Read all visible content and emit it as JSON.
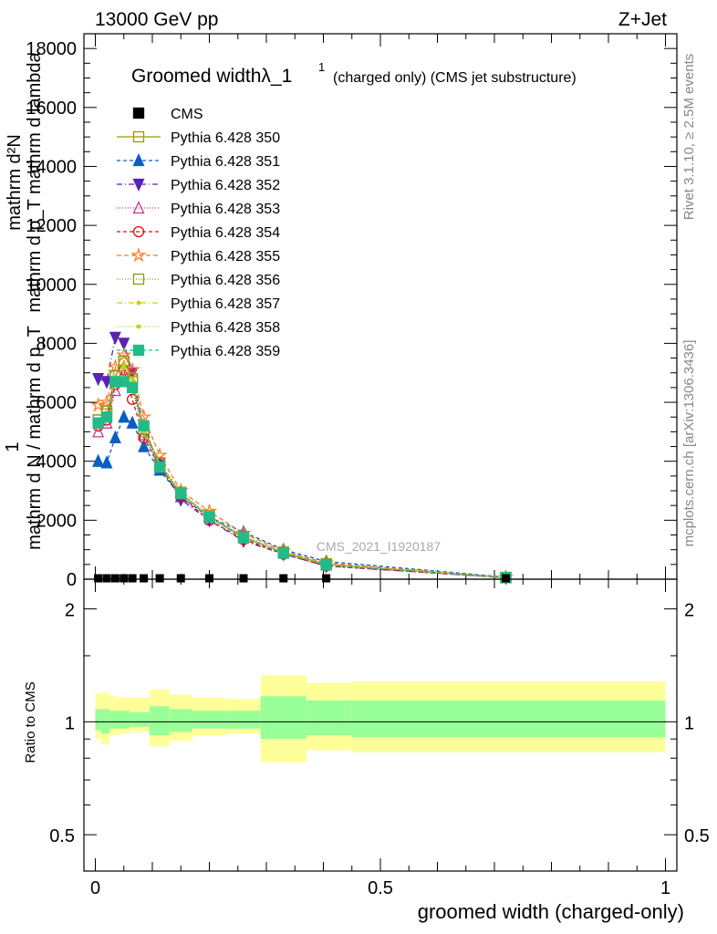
{
  "header": {
    "left": "13000 GeV pp",
    "right": "Z+Jet"
  },
  "side_labels": {
    "rivet": "Rivet 3.1.10, ≥ 2.5M events",
    "mcplots": "mcplots.cern.ch [arXiv:1306.3436]"
  },
  "watermark": "CMS_2021_I1920187",
  "chart_data": {
    "type": "line",
    "title_main": "Groomed widthλ_1",
    "title_sup": "1",
    "title_small": "(charged only) (CMS jet substructure)",
    "ylabel_lines": [
      "mathrm d²N",
      "mathrm d p_T mathrm d lambda",
      "1",
      "mathrm d N / mathrm d p_T"
    ],
    "xlabel": "groomed width (charged-only)",
    "ratio_ylabel": "Ratio to CMS",
    "xlim": [
      -0.02,
      1.02
    ],
    "ylim": [
      0,
      18500
    ],
    "ratio_ylim": [
      0.4,
      2.4
    ],
    "x_ticks": [
      0,
      0.5,
      1
    ],
    "x_tick_labels": [
      "0",
      "0.5",
      "1"
    ],
    "y_ticks": [
      0,
      2000,
      4000,
      6000,
      8000,
      10000,
      12000,
      14000,
      16000,
      18000
    ],
    "y_tick_labels": [
      "0",
      "2000",
      "4000",
      "6000",
      "8000",
      "10000",
      "12000",
      "14000",
      "16000",
      "18000"
    ],
    "ratio_ticks": [
      0.5,
      1,
      2
    ],
    "ratio_tick_labels": [
      "0.5",
      "1",
      "2"
    ],
    "x": [
      0.005,
      0.02,
      0.035,
      0.05,
      0.065,
      0.085,
      0.113,
      0.15,
      0.2,
      0.26,
      0.33,
      0.405,
      0.72
    ],
    "data": {
      "name": "CMS",
      "values": [
        30,
        30,
        30,
        30,
        30,
        30,
        30,
        30,
        30,
        30,
        30,
        30,
        30
      ]
    },
    "series": [
      {
        "name": "Pythia 6.428 350",
        "color": "#999900",
        "dash": "",
        "marker": "square-open",
        "values": [
          5400,
          5600,
          6900,
          7400,
          6700,
          5000,
          3900,
          2900,
          2100,
          1400,
          900,
          500,
          60
        ]
      },
      {
        "name": "Pythia 6.428 351",
        "color": "#0b5fbf",
        "dash": "4,3",
        "marker": "triangle-up",
        "values": [
          4000,
          3950,
          4800,
          5500,
          5300,
          4500,
          3700,
          2800,
          2100,
          1600,
          1000,
          600,
          70
        ]
      },
      {
        "name": "Pythia 6.428 352",
        "color": "#5a22b5",
        "dash": "6,3,1,3",
        "marker": "triangle-down",
        "values": [
          6800,
          6700,
          8200,
          8000,
          7000,
          5100,
          3900,
          2700,
          2000,
          1300,
          850,
          450,
          50
        ]
      },
      {
        "name": "Pythia 6.428 353",
        "color": "#cc3399",
        "dash": "1,2",
        "marker": "triangle-open",
        "values": [
          5000,
          5300,
          6400,
          7000,
          6500,
          4900,
          3800,
          2900,
          2100,
          1450,
          900,
          500,
          60
        ]
      },
      {
        "name": "Pythia 6.428 354",
        "color": "#dd1111",
        "dash": "4,3",
        "marker": "circle-open",
        "values": [
          5200,
          5400,
          6600,
          7100,
          6100,
          4800,
          3800,
          2800,
          2000,
          1350,
          850,
          450,
          50
        ]
      },
      {
        "name": "Pythia 6.428 355",
        "color": "#ff7722",
        "dash": "5,3",
        "marker": "star-open",
        "values": [
          5900,
          6000,
          7200,
          7600,
          7100,
          5500,
          4200,
          3000,
          2300,
          1550,
          950,
          550,
          60
        ]
      },
      {
        "name": "Pythia 6.428 356",
        "color": "#889911",
        "dash": "1,2",
        "marker": "square-open",
        "values": [
          5400,
          5700,
          6900,
          7400,
          6800,
          5100,
          3950,
          2950,
          2150,
          1450,
          920,
          520,
          60
        ]
      },
      {
        "name": "Pythia 6.428 357",
        "color": "#cccc11",
        "dash": "6,3,1,3",
        "marker": "dot",
        "values": [
          5300,
          5600,
          6800,
          7300,
          6800,
          5100,
          3900,
          2900,
          2100,
          1420,
          900,
          500,
          60
        ]
      },
      {
        "name": "Pythia 6.428 358",
        "color": "#aadd22",
        "dash": "1,2",
        "marker": "dot",
        "values": [
          5300,
          5500,
          6700,
          7200,
          6700,
          5000,
          3900,
          2900,
          2100,
          1420,
          900,
          500,
          60
        ]
      },
      {
        "name": "Pythia 6.428 359",
        "color": "#22bb88",
        "dash": "4,3",
        "marker": "square",
        "values": [
          5300,
          5500,
          6700,
          6700,
          6500,
          5200,
          3800,
          2900,
          2100,
          1400,
          880,
          480,
          55
        ]
      }
    ],
    "ratio_bands": [
      {
        "x0": 0.0,
        "x1": 0.01,
        "y_lo": 0.9,
        "y_hi": 1.19,
        "g_lo": 0.95,
        "g_hi": 1.08
      },
      {
        "x0": 0.01,
        "x1": 0.025,
        "y_lo": 0.87,
        "y_hi": 1.2,
        "g_lo": 0.93,
        "g_hi": 1.08
      },
      {
        "x0": 0.025,
        "x1": 0.04,
        "y_lo": 0.92,
        "y_hi": 1.17,
        "g_lo": 0.96,
        "g_hi": 1.07
      },
      {
        "x0": 0.04,
        "x1": 0.06,
        "y_lo": 0.93,
        "y_hi": 1.16,
        "g_lo": 0.96,
        "g_hi": 1.07
      },
      {
        "x0": 0.06,
        "x1": 0.095,
        "y_lo": 0.94,
        "y_hi": 1.16,
        "g_lo": 0.97,
        "g_hi": 1.06
      },
      {
        "x0": 0.095,
        "x1": 0.13,
        "y_lo": 0.86,
        "y_hi": 1.22,
        "g_lo": 0.92,
        "g_hi": 1.1
      },
      {
        "x0": 0.13,
        "x1": 0.17,
        "y_lo": 0.89,
        "y_hi": 1.18,
        "g_lo": 0.94,
        "g_hi": 1.08
      },
      {
        "x0": 0.17,
        "x1": 0.23,
        "y_lo": 0.92,
        "y_hi": 1.16,
        "g_lo": 0.96,
        "g_hi": 1.07
      },
      {
        "x0": 0.23,
        "x1": 0.29,
        "y_lo": 0.93,
        "y_hi": 1.15,
        "g_lo": 0.96,
        "g_hi": 1.07
      },
      {
        "x0": 0.29,
        "x1": 0.37,
        "y_lo": 0.78,
        "y_hi": 1.33,
        "g_lo": 0.9,
        "g_hi": 1.17
      },
      {
        "x0": 0.37,
        "x1": 0.45,
        "y_lo": 0.84,
        "y_hi": 1.27,
        "g_lo": 0.92,
        "g_hi": 1.14
      },
      {
        "x0": 0.45,
        "x1": 1.0,
        "y_lo": 0.83,
        "y_hi": 1.28,
        "g_lo": 0.91,
        "g_hi": 1.14
      }
    ]
  }
}
